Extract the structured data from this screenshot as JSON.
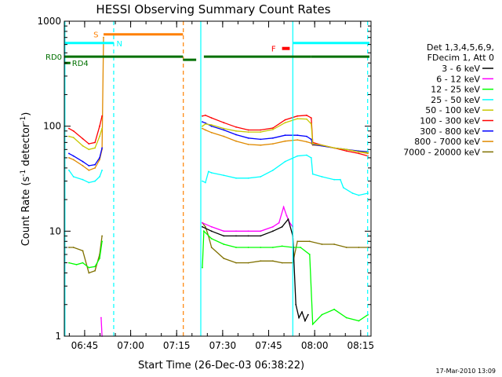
{
  "colors": {
    "background": "#ffffff",
    "axis": "#000000",
    "sunlight_bar": "#ff8000",
    "saa_bar": "#00ffff",
    "flare_bar": "#ff0000",
    "decimation_bar": "#007000",
    "saa_marker": "#00ffff",
    "sunlight_marker": "#ff8000"
  },
  "chart_data": {
    "type": "line",
    "title": "HESSI Observing Summary Count Rates",
    "xlabel": "Start Time (26-Dec-03 06:38:22)",
    "ylabel_main": "Count Rate (s",
    "ylabel_sup1": "-1",
    "ylabel_mid": " detector",
    "ylabel_sup2": "-1",
    "ylabel_end": ")",
    "x_units": "minutes since 06:38:22",
    "xlim": [
      0,
      100
    ],
    "ylim": [
      1,
      1000
    ],
    "yscale": "log",
    "xticks": [
      {
        "label": "06:45",
        "value": 6.63
      },
      {
        "label": "07:00",
        "value": 21.63
      },
      {
        "label": "07:15",
        "value": 36.63
      },
      {
        "label": "07:30",
        "value": 51.63
      },
      {
        "label": "07:45",
        "value": 66.63
      },
      {
        "label": "08:00",
        "value": 81.63
      },
      {
        "label": "08:15",
        "value": 96.63
      }
    ],
    "yticks": [
      {
        "label": "1",
        "value": 1
      },
      {
        "label": "10",
        "value": 10
      },
      {
        "label": "100",
        "value": 100
      },
      {
        "label": "1000",
        "value": 1000
      }
    ],
    "legend": {
      "placement": "right",
      "header1": "Det 1,3,4,5,6,9,",
      "header2": "FDecim 1, Att 0"
    },
    "bars": [
      {
        "label": "S",
        "color": "#ff8000",
        "level": 750,
        "segments": [
          [
            12.8,
            38.7
          ]
        ],
        "label_at": 9.5
      },
      {
        "label": "N",
        "color": "#00ffff",
        "level": 620,
        "segments": [
          [
            0,
            16.1
          ],
          [
            74.5,
            99.5
          ]
        ],
        "label_at": 17.0
      },
      {
        "label": "F",
        "color": "#ff0000",
        "level": 550,
        "segments": [
          [
            71.0,
            73.5
          ]
        ],
        "label_at": 67.5
      },
      {
        "label": "RD0",
        "color": "#007000",
        "level": 460,
        "segments": [
          [
            0,
            38.7
          ],
          [
            38.7,
            43.0
          ],
          [
            45.5,
            80.5
          ],
          [
            80.5,
            99.5
          ]
        ],
        "label_at": -5
      },
      {
        "label": "RD4",
        "color": "#007000",
        "level": 400,
        "segments": [
          [
            0,
            2.0
          ]
        ],
        "label_at": 2.5
      }
    ],
    "vertical_markers": [
      {
        "x": 0.2,
        "color": "#00ffff",
        "style": "solid"
      },
      {
        "x": 16.1,
        "color": "#00ffff",
        "style": "dashed"
      },
      {
        "x": 38.8,
        "color": "#ff8000",
        "style": "dashed"
      },
      {
        "x": 44.5,
        "color": "#00ffff",
        "style": "solid"
      },
      {
        "x": 74.5,
        "color": "#00ffff",
        "style": "solid"
      },
      {
        "x": 98.9,
        "color": "#00ffff",
        "style": "dashed"
      }
    ],
    "series": [
      {
        "name": "3 - 6 keV",
        "color": "#000000",
        "segments": [
          [
            [
              45.0,
              11
            ],
            [
              48,
              10
            ],
            [
              52,
              9
            ],
            [
              56,
              9
            ],
            [
              60,
              9
            ],
            [
              64,
              9
            ],
            [
              68,
              10
            ],
            [
              71,
              11
            ],
            [
              73,
              13
            ],
            [
              74.5,
              9
            ],
            [
              75.5,
              2.0
            ],
            [
              76.5,
              1.5
            ],
            [
              77.5,
              1.7
            ],
            [
              78.5,
              1.4
            ],
            [
              79.5,
              1.6
            ]
          ]
        ]
      },
      {
        "name": "6 - 12 keV",
        "color": "#ff00ff",
        "segments": [
          [
            [
              12.0,
              1.5
            ],
            [
              12.3,
              1.0
            ]
          ],
          [
            [
              45.0,
              12
            ],
            [
              48,
              11
            ],
            [
              52,
              10
            ],
            [
              56,
              10
            ],
            [
              60,
              10
            ],
            [
              64,
              10
            ],
            [
              68,
              11
            ],
            [
              70,
              12
            ],
            [
              71.5,
              17
            ],
            [
              72.5,
              14
            ],
            [
              73.5,
              12
            ],
            [
              74.5,
              11
            ]
          ]
        ]
      },
      {
        "name": "12 - 25 keV",
        "color": "#00ff00",
        "segments": [
          [
            [
              1.5,
              5
            ],
            [
              4,
              4.8
            ],
            [
              6,
              5
            ],
            [
              8,
              4.5
            ],
            [
              10,
              4.6
            ],
            [
              11.5,
              5.5
            ],
            [
              12.3,
              8
            ]
          ],
          [
            [
              45.0,
              4.5
            ],
            [
              45.5,
              10
            ],
            [
              48,
              8.5
            ],
            [
              52,
              7.5
            ],
            [
              56,
              7
            ],
            [
              60,
              7
            ],
            [
              64,
              7
            ],
            [
              68,
              7
            ],
            [
              71,
              7.2
            ],
            [
              74.5,
              7
            ],
            [
              77,
              7
            ],
            [
              80,
              6
            ],
            [
              81,
              1.3
            ],
            [
              84,
              1.6
            ],
            [
              88,
              1.8
            ],
            [
              92,
              1.5
            ],
            [
              96,
              1.4
            ],
            [
              99,
              1.6
            ]
          ]
        ]
      },
      {
        "name": "25 - 50 keV",
        "color": "#00ffff",
        "segments": [
          [
            [
              1.5,
              38
            ],
            [
              3,
              33
            ],
            [
              6,
              31
            ],
            [
              8,
              29
            ],
            [
              10,
              30
            ],
            [
              11.5,
              33
            ],
            [
              12.3,
              38
            ]
          ],
          [
            [
              45.0,
              30
            ],
            [
              46,
              29
            ],
            [
              47,
              37
            ],
            [
              48,
              36
            ],
            [
              52,
              34
            ],
            [
              56,
              32
            ],
            [
              60,
              32
            ],
            [
              64,
              33
            ],
            [
              68,
              38
            ],
            [
              72,
              46
            ],
            [
              76,
              52
            ],
            [
              79,
              53
            ],
            [
              80.5,
              50
            ],
            [
              81,
              35
            ],
            [
              84,
              33
            ],
            [
              88,
              31
            ],
            [
              90,
              31
            ],
            [
              91,
              26
            ],
            [
              94,
              23
            ],
            [
              96,
              22
            ],
            [
              99,
              23
            ]
          ]
        ]
      },
      {
        "name": "50 - 100 keV",
        "color": "#c8c800",
        "segments": [
          [
            [
              1.5,
              80
            ],
            [
              3,
              78
            ],
            [
              6,
              65
            ],
            [
              8,
              60
            ],
            [
              10,
              62
            ],
            [
              11.5,
              80
            ],
            [
              12.3,
              95
            ]
          ],
          [
            [
              45.0,
              100
            ],
            [
              46,
              105
            ],
            [
              48,
              103
            ],
            [
              52,
              95
            ],
            [
              56,
              90
            ],
            [
              60,
              88
            ],
            [
              64,
              88
            ],
            [
              68,
              93
            ],
            [
              72,
              108
            ],
            [
              76,
              118
            ],
            [
              79,
              117
            ],
            [
              80.5,
              105
            ],
            [
              81,
              68
            ],
            [
              84,
              66
            ],
            [
              88,
              62
            ],
            [
              92,
              60
            ],
            [
              96,
              57
            ],
            [
              99,
              56
            ]
          ]
        ]
      },
      {
        "name": "100 - 300 keV",
        "color": "#ff0000",
        "segments": [
          [
            [
              1.5,
              95
            ],
            [
              3,
              90
            ],
            [
              6,
              76
            ],
            [
              8,
              68
            ],
            [
              10,
              70
            ],
            [
              11.5,
              100
            ],
            [
              12.3,
              125
            ]
          ],
          [
            [
              45.0,
              125
            ],
            [
              46,
              127
            ],
            [
              48,
              120
            ],
            [
              52,
              108
            ],
            [
              56,
              98
            ],
            [
              60,
              92
            ],
            [
              64,
              92
            ],
            [
              68,
              96
            ],
            [
              72,
              115
            ],
            [
              76,
              125
            ],
            [
              79,
              127
            ],
            [
              80.5,
              120
            ],
            [
              81,
              70
            ],
            [
              84,
              66
            ],
            [
              88,
              62
            ],
            [
              92,
              58
            ],
            [
              96,
              55
            ],
            [
              99,
              52
            ]
          ]
        ]
      },
      {
        "name": "300 - 800 keV",
        "color": "#0000ff",
        "segments": [
          [
            [
              1.5,
              55
            ],
            [
              3,
              52
            ],
            [
              6,
              46
            ],
            [
              8,
              42
            ],
            [
              10,
              43
            ],
            [
              11.5,
              50
            ],
            [
              12.3,
              62
            ]
          ],
          [
            [
              45.0,
              110
            ],
            [
              46,
              107
            ],
            [
              48,
              100
            ],
            [
              52,
              92
            ],
            [
              56,
              83
            ],
            [
              60,
              77
            ],
            [
              64,
              75
            ],
            [
              68,
              77
            ],
            [
              72,
              82
            ],
            [
              76,
              82
            ],
            [
              79,
              80
            ],
            [
              80.5,
              75
            ],
            [
              81,
              67
            ],
            [
              84,
              65
            ],
            [
              88,
              62
            ],
            [
              92,
              60
            ],
            [
              96,
              58
            ],
            [
              99,
              57
            ]
          ]
        ]
      },
      {
        "name": "800 - 7000 keV",
        "color": "#e08a00",
        "segments": [
          [
            [
              1.5,
              50
            ],
            [
              3,
              48
            ],
            [
              6,
              42
            ],
            [
              8,
              38
            ],
            [
              10,
              40
            ],
            [
              11.5,
              48
            ],
            [
              12.3,
              60
            ],
            [
              12.8,
              700
            ]
          ],
          [
            [
              45.0,
              95
            ],
            [
              46,
              92
            ],
            [
              48,
              87
            ],
            [
              52,
              80
            ],
            [
              56,
              72
            ],
            [
              60,
              67
            ],
            [
              64,
              66
            ],
            [
              68,
              68
            ],
            [
              72,
              72
            ],
            [
              76,
              74
            ],
            [
              79,
              71
            ],
            [
              80.5,
              69
            ],
            [
              81,
              66
            ],
            [
              84,
              65
            ],
            [
              88,
              62
            ],
            [
              92,
              60
            ],
            [
              96,
              57
            ],
            [
              99,
              55
            ]
          ]
        ]
      },
      {
        "name": "7000 - 20000 keV",
        "color": "#807000",
        "segments": [
          [
            [
              1.5,
              7
            ],
            [
              3,
              7
            ],
            [
              6,
              6.5
            ],
            [
              8,
              4
            ],
            [
              10,
              4.2
            ],
            [
              11.5,
              6
            ],
            [
              12.3,
              9
            ]
          ],
          [
            [
              45.0,
              12
            ],
            [
              46,
              11
            ],
            [
              47,
              9
            ],
            [
              48,
              7
            ],
            [
              52,
              5.5
            ],
            [
              56,
              5
            ],
            [
              60,
              5
            ],
            [
              64,
              5.2
            ],
            [
              68,
              5.2
            ],
            [
              71,
              5
            ],
            [
              74.5,
              5
            ],
            [
              76,
              8
            ],
            [
              80,
              8
            ],
            [
              84,
              7.5
            ],
            [
              88,
              7.5
            ],
            [
              92,
              7
            ],
            [
              96,
              7
            ],
            [
              99,
              7
            ]
          ]
        ]
      }
    ]
  },
  "footer": {
    "timestamp": "17-Mar-2010 13:09"
  }
}
